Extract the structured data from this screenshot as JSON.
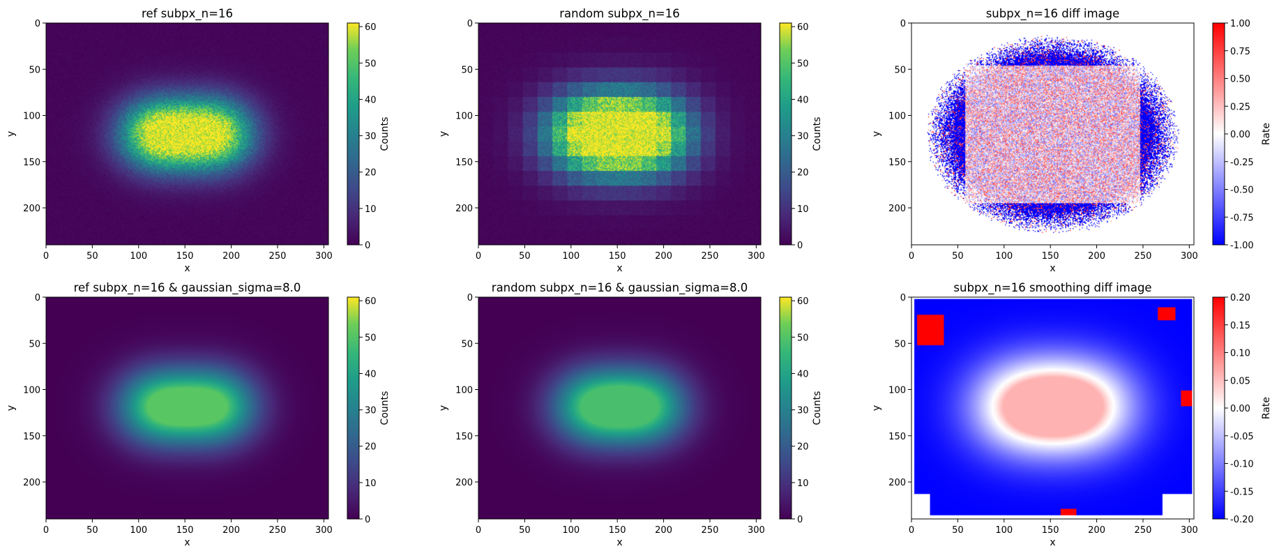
{
  "chart_data": [
    {
      "type": "heatmap",
      "title": "ref subpx_n=16",
      "xlabel": "x",
      "ylabel": "y",
      "xlim": [
        0,
        305
      ],
      "ylim": [
        240,
        0
      ],
      "xticks": [
        0,
        50,
        100,
        150,
        200,
        250,
        300
      ],
      "yticks": [
        0,
        50,
        100,
        150,
        200
      ],
      "colorbar": {
        "label": "Counts",
        "min": 0,
        "max": 61,
        "ticks": [
          0,
          10,
          20,
          30,
          40,
          50,
          60
        ],
        "colormap": "viridis"
      },
      "image": {
        "kind": "blobs",
        "centers": [
          [
            122,
            120
          ],
          [
            180,
            120
          ]
        ],
        "peak": 60,
        "noise": "grainy"
      }
    },
    {
      "type": "heatmap",
      "title": "random subpx_n=16",
      "xlabel": "x",
      "ylabel": "y",
      "xlim": [
        0,
        305
      ],
      "ylim": [
        240,
        0
      ],
      "xticks": [
        0,
        50,
        100,
        150,
        200,
        250,
        300
      ],
      "yticks": [
        0,
        50,
        100,
        150,
        200
      ],
      "colorbar": {
        "label": "Counts",
        "min": 0,
        "max": 61,
        "ticks": [
          0,
          10,
          20,
          30,
          40,
          50,
          60
        ],
        "colormap": "viridis"
      },
      "image": {
        "kind": "blocks",
        "centers": [
          [
            122,
            120
          ],
          [
            180,
            120
          ]
        ],
        "peak": 60,
        "block_size": 16,
        "noise": "grainy"
      }
    },
    {
      "type": "heatmap",
      "title": "subpx_n=16 diff image",
      "xlabel": "x",
      "ylabel": "y",
      "xlim": [
        0,
        305
      ],
      "ylim": [
        240,
        0
      ],
      "xticks": [
        0,
        50,
        100,
        150,
        200,
        250,
        300
      ],
      "yticks": [
        0,
        50,
        100,
        150,
        200
      ],
      "colorbar": {
        "label": "Rate",
        "min": -1.0,
        "max": 1.0,
        "ticks": [
          "-1.00",
          "-0.75",
          "-0.50",
          "-0.25",
          "0.00",
          "0.25",
          "0.50",
          "0.75",
          "1.00"
        ],
        "colormap": "bwr"
      },
      "image": {
        "kind": "diff-scatter",
        "extent_x": [
          20,
          290
        ],
        "extent_y": [
          15,
          225
        ]
      }
    },
    {
      "type": "heatmap",
      "title": "ref subpx_n=16 & gaussian_sigma=8.0",
      "xlabel": "x",
      "ylabel": "y",
      "xlim": [
        0,
        305
      ],
      "ylim": [
        240,
        0
      ],
      "xticks": [
        0,
        50,
        100,
        150,
        200,
        250,
        300
      ],
      "yticks": [
        0,
        50,
        100,
        150,
        200
      ],
      "colorbar": {
        "label": "Counts",
        "min": 0,
        "max": 61,
        "ticks": [
          0,
          10,
          20,
          30,
          40,
          50,
          60
        ],
        "colormap": "viridis"
      },
      "image": {
        "kind": "blobs",
        "centers": [
          [
            122,
            118
          ],
          [
            182,
            118
          ]
        ],
        "peak": 45,
        "noise": "none"
      }
    },
    {
      "type": "heatmap",
      "title": "random subpx_n=16 & gaussian_sigma=8.0",
      "xlabel": "x",
      "ylabel": "y",
      "xlim": [
        0,
        305
      ],
      "ylim": [
        240,
        0
      ],
      "xticks": [
        0,
        50,
        100,
        150,
        200,
        250,
        300
      ],
      "yticks": [
        0,
        50,
        100,
        150,
        200
      ],
      "colorbar": {
        "label": "Counts",
        "min": 0,
        "max": 61,
        "ticks": [
          0,
          10,
          20,
          30,
          40,
          50,
          60
        ],
        "colormap": "viridis"
      },
      "image": {
        "kind": "blobs",
        "centers": [
          [
            124,
            118
          ],
          [
            180,
            118
          ]
        ],
        "peak": 43,
        "noise": "none"
      }
    },
    {
      "type": "heatmap",
      "title": "subpx_n=16 smoothing diff image",
      "xlabel": "x",
      "ylabel": "y",
      "xlim": [
        0,
        305
      ],
      "ylim": [
        240,
        0
      ],
      "xticks": [
        0,
        50,
        100,
        150,
        200,
        250,
        300
      ],
      "yticks": [
        0,
        50,
        100,
        150,
        200
      ],
      "colorbar": {
        "label": "Rate",
        "min": -0.2,
        "max": 0.2,
        "ticks": [
          "-0.20",
          "-0.15",
          "-0.10",
          "-0.05",
          "0.00",
          "0.05",
          "0.10",
          "0.15",
          "0.20"
        ],
        "colormap": "bwr"
      },
      "image": {
        "kind": "smooth-diff",
        "centers": [
          [
            120,
            118
          ],
          [
            185,
            118
          ]
        ]
      }
    }
  ],
  "colors": {
    "blue": "#0000ff",
    "red": "#ff0000",
    "white": "#ffffff",
    "viridis_low": "#440154",
    "viridis_high": "#fde725"
  }
}
